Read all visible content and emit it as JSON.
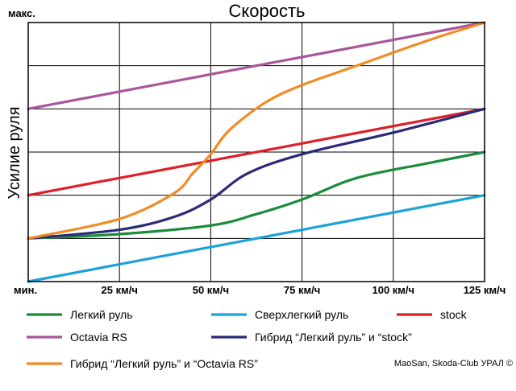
{
  "chart_data": {
    "type": "line",
    "title": "Скорость",
    "ylabel": "Усилие руля",
    "y_top_label": "макс.",
    "x_start_label": "мин.",
    "x_tick_labels": [
      "25 км/ч",
      "50 км/ч",
      "75 км/ч",
      "100 км/ч",
      "125 км/ч"
    ],
    "xlim": [
      0,
      125
    ],
    "ylim": [
      0,
      6
    ],
    "grid": true,
    "legend_position": "bottom",
    "series": [
      {
        "name": "Легкий руль",
        "color": "#1a8c3c",
        "x": [
          0,
          25,
          50,
          62,
          75,
          90,
          110,
          125
        ],
        "y": [
          1.0,
          1.1,
          1.3,
          1.55,
          1.9,
          2.4,
          2.75,
          3.0
        ]
      },
      {
        "name": "Сверхлегкий руль",
        "color": "#1aa3d8",
        "x": [
          0,
          125
        ],
        "y": [
          0.0,
          2.0
        ]
      },
      {
        "name": "stock",
        "color": "#dd1f2a",
        "x": [
          0,
          125
        ],
        "y": [
          2.0,
          4.0
        ]
      },
      {
        "name": "Octavia RS",
        "color": "#a8559a",
        "x": [
          0,
          125
        ],
        "y": [
          4.0,
          6.0
        ]
      },
      {
        "name": "Гибрид “Легкий руль” и “stock”",
        "color": "#2b2a78",
        "x": [
          0,
          25,
          40,
          50,
          60,
          75,
          100,
          125
        ],
        "y": [
          1.0,
          1.2,
          1.5,
          1.9,
          2.5,
          2.95,
          3.45,
          4.0
        ]
      },
      {
        "name": "Гибрид “Легкий руль” и “Octavia RS”",
        "color": "#ef8c26",
        "x": [
          0,
          25,
          40,
          45,
          50,
          55,
          65,
          75,
          90,
          110,
          125
        ],
        "y": [
          1.0,
          1.45,
          2.05,
          2.5,
          2.95,
          3.5,
          4.15,
          4.55,
          5.0,
          5.6,
          6.0
        ]
      }
    ],
    "credit": "MaoSan, Skoda-Club УРАЛ ©"
  }
}
